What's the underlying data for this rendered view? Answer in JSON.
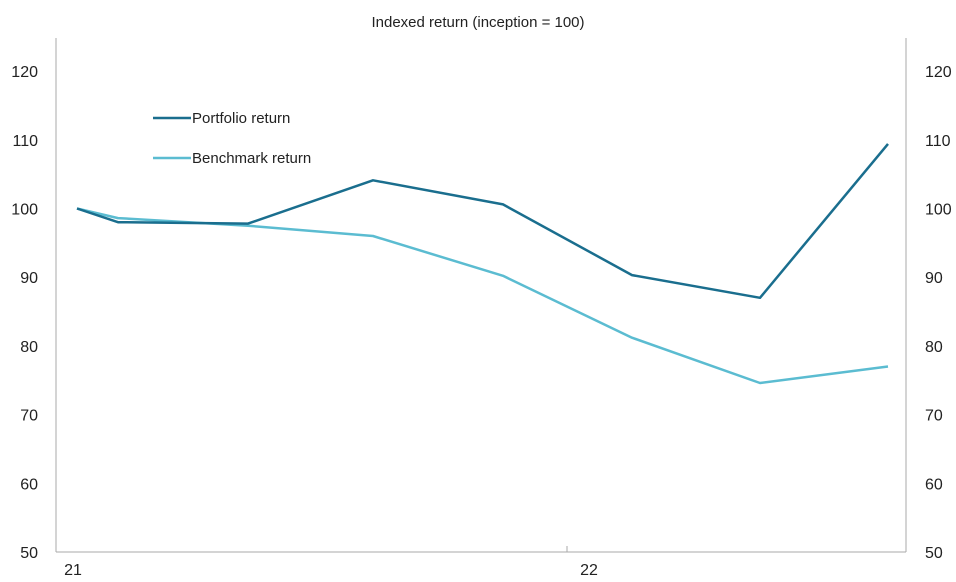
{
  "chart_data": {
    "type": "line",
    "title": "Indexed return (inception = 100)",
    "xlabel": "",
    "ylabel": "",
    "x_tick_labels": [
      "21",
      "22"
    ],
    "y_ticks": [
      50,
      60,
      70,
      80,
      90,
      100,
      110,
      120
    ],
    "ylim": [
      50,
      125
    ],
    "grid": false,
    "legend_position": "upper-left",
    "series": [
      {
        "name": "Portfolio return",
        "color": "#1a6e8e",
        "values": [
          100,
          98,
          97.8,
          104.1,
          100.6,
          90.3,
          87,
          109.4
        ]
      },
      {
        "name": "Benchmark return",
        "color": "#5bbcd1",
        "values": [
          100,
          98.6,
          97.5,
          96,
          90.2,
          81.2,
          74.6,
          77
        ]
      }
    ]
  }
}
